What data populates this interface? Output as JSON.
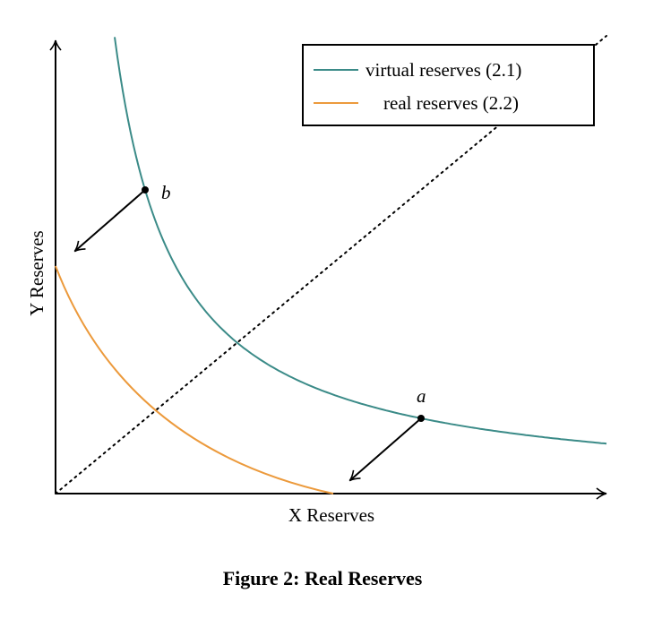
{
  "figure": {
    "caption": "Figure 2: Real Reserves",
    "x_axis_label": "X Reserves",
    "y_axis_label": "Y Reserves",
    "legend": [
      {
        "label": "virtual reserves (2.1)",
        "color": "#3b8b88"
      },
      {
        "label": "real reserves (2.2)",
        "color": "#ec9a3c"
      }
    ],
    "points": [
      {
        "label": "a"
      },
      {
        "label": "b"
      }
    ]
  }
}
